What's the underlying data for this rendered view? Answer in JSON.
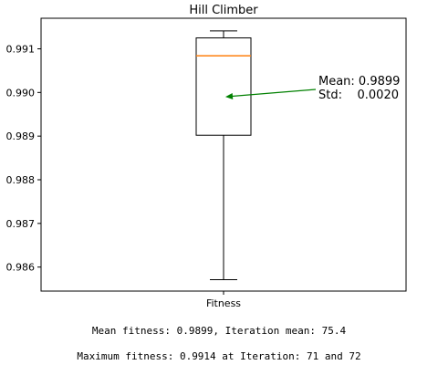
{
  "chart_data": {
    "type": "box",
    "title": "Hill Climber",
    "categories": [
      "Fitness"
    ],
    "box": {
      "whisker_low": 0.98571,
      "q1": 0.98902,
      "median": 0.99084,
      "q3": 0.99125,
      "whisker_high": 0.99141,
      "mean": 0.9899
    },
    "ylim": [
      0.98545,
      0.9917
    ],
    "yticks": [
      "0.986",
      "0.987",
      "0.988",
      "0.989",
      "0.990",
      "0.991"
    ],
    "ytick_values": [
      0.986,
      0.987,
      0.988,
      0.989,
      0.99,
      0.991
    ],
    "annotation": {
      "line1": "Mean: 0.9899",
      "line2": "Std:    0.0020"
    },
    "colors": {
      "median": "#ff7f0e",
      "arrow": "#008000",
      "box": "#000000"
    }
  },
  "captions": {
    "line1": "Mean fitness: 0.9899, Iteration mean: 75.4",
    "line2": "Maximum fitness: 0.9914 at Iteration: 71 and 72"
  }
}
